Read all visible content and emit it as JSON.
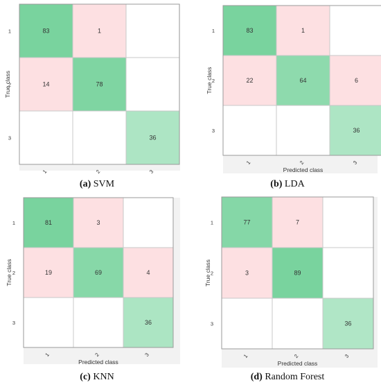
{
  "chart_data": [
    {
      "type": "heatmap",
      "caption_letter": "(a)",
      "caption_text": "SVM",
      "ylabel": "True class",
      "xlabel": "",
      "row_labels": [
        "1",
        "2",
        "3"
      ],
      "col_labels": [
        "1",
        "2",
        "3"
      ],
      "cells": [
        [
          83,
          1,
          null
        ],
        [
          14,
          78,
          null
        ],
        [
          null,
          null,
          36
        ]
      ],
      "colors": {
        "diag": "#79d39e",
        "off": "#fde0e2",
        "diag_light": "#b0e6c6"
      }
    },
    {
      "type": "heatmap",
      "caption_letter": "(b)",
      "caption_text": "LDA",
      "ylabel": "True class",
      "xlabel": "Predicted class",
      "row_labels": [
        "1",
        "2",
        "3"
      ],
      "col_labels": [
        "1",
        "2",
        "3"
      ],
      "cells": [
        [
          83,
          1,
          null
        ],
        [
          22,
          64,
          6
        ],
        [
          null,
          null,
          36
        ]
      ],
      "colors": {
        "diag": "#79d39e",
        "off": "#fde0e2",
        "diag_light": "#b0e6c6"
      }
    },
    {
      "type": "heatmap",
      "caption_letter": "(c)",
      "caption_text": "KNN",
      "ylabel": "True class",
      "xlabel": "Predicted class",
      "row_labels": [
        "1",
        "2",
        "3"
      ],
      "col_labels": [
        "1",
        "2",
        "3"
      ],
      "cells": [
        [
          81,
          3,
          null
        ],
        [
          19,
          69,
          4
        ],
        [
          null,
          null,
          36
        ]
      ],
      "colors": {
        "diag": "#79d39e",
        "off": "#fde0e2",
        "diag_light": "#b0e6c6"
      }
    },
    {
      "type": "heatmap",
      "caption_letter": "(d)",
      "caption_text": "Random Forest",
      "ylabel": "True class",
      "xlabel": "Predicted class",
      "row_labels": [
        "1",
        "2",
        "3"
      ],
      "col_labels": [
        "1",
        "2",
        "3"
      ],
      "cells": [
        [
          77,
          7,
          null
        ],
        [
          3,
          89,
          null
        ],
        [
          null,
          null,
          36
        ]
      ],
      "colors": {
        "diag": "#79d39e",
        "off": "#fde0e2",
        "diag_light": "#b0e6c6"
      }
    }
  ]
}
